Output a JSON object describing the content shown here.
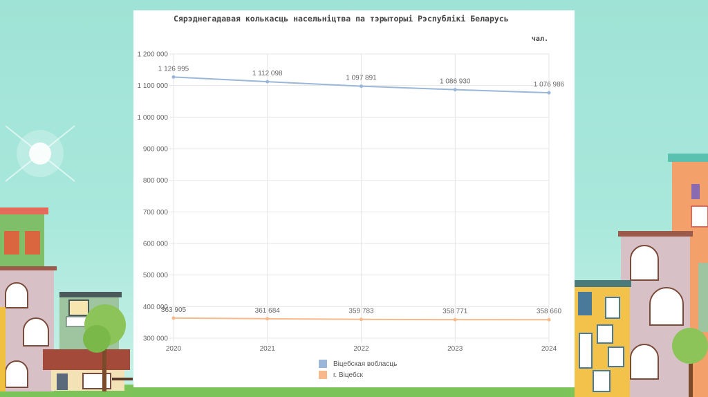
{
  "chart_data": {
    "type": "line",
    "title": "Сярэднегадавая колькасць насельніцтва па тэрыторыі Рэспублікі Беларусь",
    "unit_label": "чал.",
    "xlabel": "",
    "ylabel": "",
    "x": [
      "2020",
      "2021",
      "2022",
      "2023",
      "2024"
    ],
    "ylim": [
      300000,
      1200000
    ],
    "yticks": [
      300000,
      400000,
      500000,
      600000,
      700000,
      800000,
      900000,
      1000000,
      1100000,
      1200000
    ],
    "ytick_labels": [
      "300 000",
      "400 000",
      "500 000",
      "600 000",
      "700 000",
      "800 000",
      "900 000",
      "1 000 000",
      "1 100 000",
      "1 200 000"
    ],
    "grid": true,
    "legend_position": "bottom",
    "series": [
      {
        "name": "Віцебская вобласць",
        "values": [
          1126995,
          1112098,
          1097891,
          1086930,
          1076986
        ],
        "labels": [
          "1 126 995",
          "1 112 098",
          "1 097 891",
          "1 086 930",
          "1 076 986"
        ],
        "color": "#9ab6d9"
      },
      {
        "name": "г. Віцебск",
        "values": [
          363905,
          361684,
          359783,
          358771,
          358660
        ],
        "labels": [
          "363 905",
          "361 684",
          "359 783",
          "358 771",
          "358 660"
        ],
        "color": "#f7b98b"
      }
    ]
  }
}
